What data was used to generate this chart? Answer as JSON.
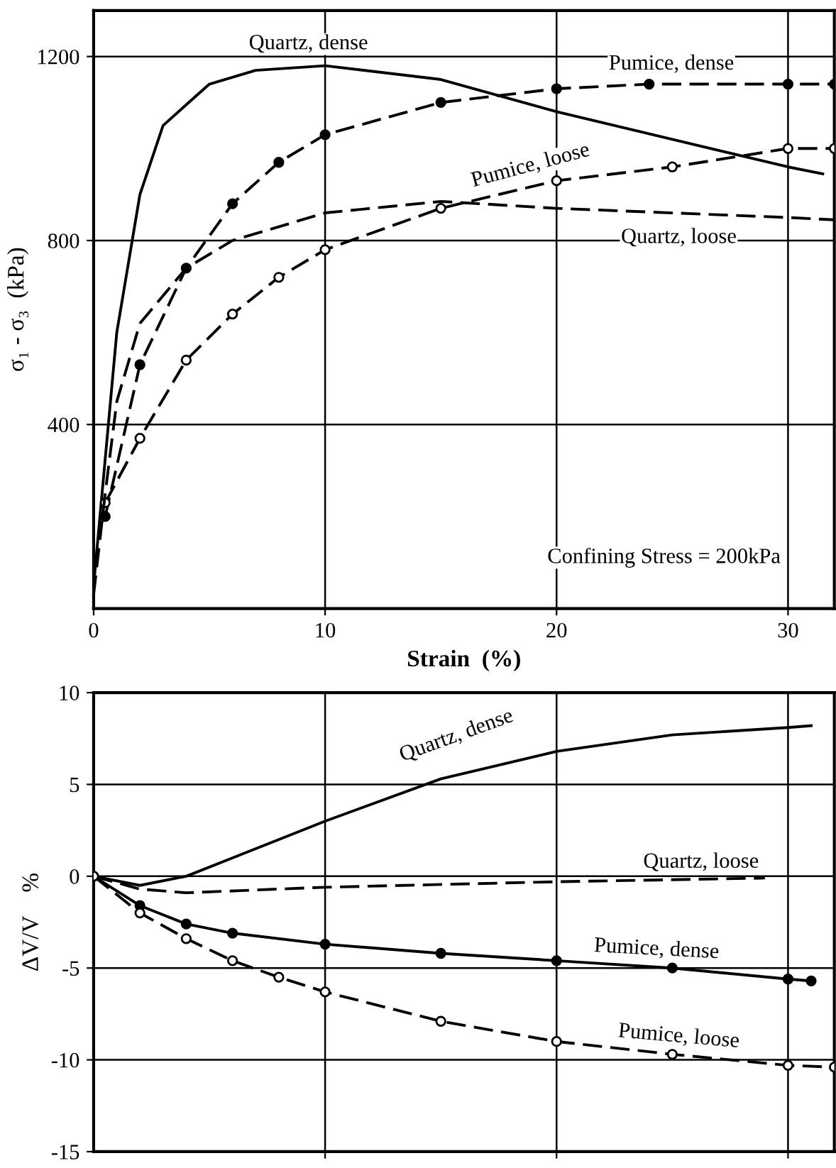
{
  "chart_data": [
    {
      "type": "line",
      "xlabel": "Strain  (%)",
      "ylabel": "σ₁ - σ₃  (kPa)",
      "xlim": [
        0,
        32
      ],
      "ylim": [
        0,
        1300
      ],
      "xticks": [
        0,
        10,
        20,
        30
      ],
      "yticks": [
        400,
        800,
        1200
      ],
      "grid": true,
      "legend": false,
      "annotations": [
        "Confining Stress = 200kPa"
      ],
      "series": [
        {
          "name": "Quartz, dense",
          "color": "#000000",
          "line_style": "solid",
          "marker": "none",
          "x": [
            0,
            1,
            2,
            3,
            5,
            7,
            10,
            15,
            20,
            25,
            30,
            31.5
          ],
          "values": [
            50,
            600,
            900,
            1050,
            1140,
            1170,
            1180,
            1150,
            1080,
            1020,
            960,
            945
          ]
        },
        {
          "name": "Pumice, dense",
          "color": "#000000",
          "line_style": "dashed",
          "marker": "circle",
          "x": [
            0.5,
            2,
            4,
            6,
            8,
            10,
            15,
            20,
            24,
            30,
            32
          ],
          "values": [
            200,
            530,
            740,
            880,
            970,
            1030,
            1100,
            1130,
            1140,
            1140,
            1140
          ]
        },
        {
          "name": "Pumice, loose",
          "color": "#000000",
          "line_style": "dashed",
          "marker": "circle",
          "x": [
            0.5,
            2,
            4,
            6,
            8,
            10,
            15,
            20,
            25,
            30,
            32
          ],
          "values": [
            230,
            370,
            540,
            640,
            720,
            780,
            870,
            930,
            960,
            1000,
            1000
          ]
        },
        {
          "name": "Quartz, loose",
          "color": "#000000",
          "line_style": "dashed",
          "marker": "none",
          "x": [
            0,
            0.5,
            1,
            2,
            4,
            6,
            10,
            15,
            20,
            30,
            32
          ],
          "values": [
            30,
            250,
            450,
            620,
            740,
            800,
            860,
            885,
            870,
            850,
            845
          ]
        }
      ]
    },
    {
      "type": "line",
      "ylabel": "ΔV/V    %",
      "xlim": [
        0,
        32
      ],
      "ylim": [
        -15,
        10
      ],
      "xticks": [
        {
          "value": 10,
          "label": null
        },
        {
          "value": 20,
          "label": null
        },
        {
          "value": 30,
          "label": null
        }
      ],
      "yticks": [
        -15,
        -10,
        -5,
        0,
        5,
        10
      ],
      "grid": true,
      "legend": false,
      "tick_labels": "y",
      "series": [
        {
          "name": "Quartz, dense",
          "color": "#000000",
          "line_style": "solid",
          "marker": "none",
          "x": [
            0,
            2,
            4,
            6,
            10,
            15,
            20,
            25,
            30,
            31
          ],
          "values": [
            0,
            -0.5,
            0,
            1,
            3,
            5.3,
            6.8,
            7.7,
            8.1,
            8.2
          ]
        },
        {
          "name": "Quartz, loose",
          "color": "#000000",
          "line_style": "dashed",
          "marker": "none",
          "x": [
            0,
            2,
            4,
            10,
            20,
            29
          ],
          "values": [
            0,
            -0.7,
            -0.9,
            -0.6,
            -0.3,
            -0.1
          ]
        },
        {
          "name": "Pumice, dense",
          "color": "#000000",
          "line_style": "solid",
          "marker": "circle",
          "x": [
            0,
            2,
            4,
            6,
            10,
            15,
            20,
            25,
            30,
            31
          ],
          "values": [
            0,
            -1.6,
            -2.6,
            -3.1,
            -3.7,
            -4.2,
            -4.6,
            -5.0,
            -5.6,
            -5.7
          ]
        },
        {
          "name": "Pumice, loose",
          "color": "#000000",
          "line_style": "dashed",
          "marker": "circle",
          "x": [
            0,
            2,
            4,
            6,
            8,
            10,
            15,
            20,
            25,
            30,
            32
          ],
          "values": [
            0,
            -2.0,
            -3.4,
            -4.6,
            -5.5,
            -6.3,
            -7.9,
            -9.0,
            -9.7,
            -10.3,
            -10.4
          ]
        }
      ]
    }
  ]
}
